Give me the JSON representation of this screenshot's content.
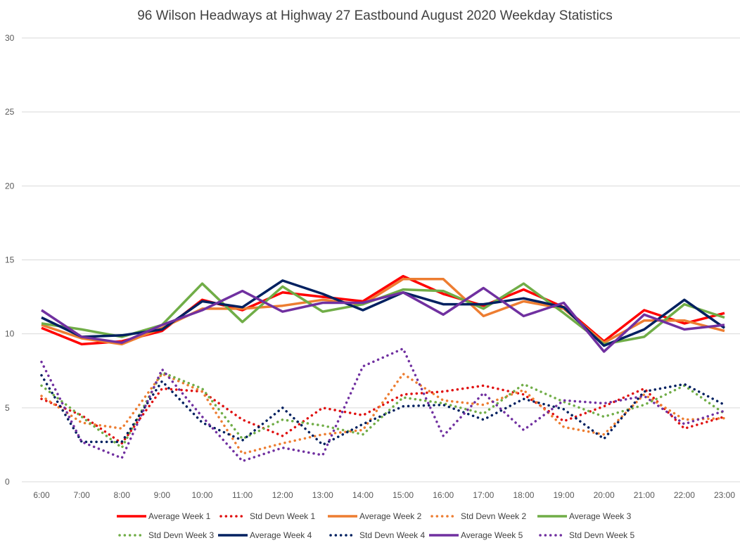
{
  "chart_data": {
    "type": "line",
    "title": "96 Wilson Headways at Highway 27 Eastbound August 2020 Weekday Statistics",
    "xlabel": "",
    "ylabel": "",
    "ylim": [
      0,
      30
    ],
    "yticks": [
      "0",
      "5",
      "10",
      "15",
      "20",
      "25",
      "30"
    ],
    "ytick_values": [
      0,
      5,
      10,
      15,
      20,
      25,
      30
    ],
    "grid": true,
    "legend_position": "bottom",
    "categories": [
      "6:00",
      "7:00",
      "8:00",
      "9:00",
      "10:00",
      "11:00",
      "12:00",
      "13:00",
      "14:00",
      "15:00",
      "16:00",
      "17:00",
      "18:00",
      "19:00",
      "20:00",
      "21:00",
      "22:00",
      "23:00"
    ],
    "series": [
      {
        "name": "Average Week 1",
        "style": "solid",
        "color": "#ff0000",
        "values": [
          10.4,
          9.3,
          9.5,
          10.2,
          12.3,
          11.6,
          12.8,
          12.5,
          12.2,
          13.9,
          12.7,
          11.9,
          13.0,
          11.8,
          9.5,
          11.6,
          10.7,
          11.4
        ]
      },
      {
        "name": "Std Devn Week 1",
        "style": "dotted",
        "color": "#e01010",
        "values": [
          5.6,
          4.5,
          2.6,
          6.3,
          6.1,
          4.2,
          3.1,
          5.0,
          4.5,
          5.9,
          6.1,
          6.5,
          5.9,
          4.1,
          5.1,
          6.3,
          3.6,
          4.4
        ]
      },
      {
        "name": "Average Week 2",
        "style": "solid",
        "color": "#ed7d31",
        "values": [
          10.6,
          9.7,
          9.3,
          10.4,
          11.7,
          11.7,
          11.9,
          12.3,
          12.0,
          13.7,
          13.7,
          11.2,
          12.2,
          11.7,
          9.4,
          10.9,
          10.9,
          10.2
        ]
      },
      {
        "name": "Std Devn Week 2",
        "style": "dotted",
        "color": "#ed7d31",
        "values": [
          5.8,
          4.0,
          3.6,
          7.3,
          6.1,
          1.9,
          2.6,
          3.2,
          3.5,
          7.3,
          5.5,
          5.2,
          6.2,
          3.7,
          3.2,
          5.9,
          4.2,
          4.3
        ]
      },
      {
        "name": "Average Week 3",
        "style": "solid",
        "color": "#70ad47",
        "values": [
          10.7,
          10.3,
          9.8,
          10.6,
          13.4,
          10.8,
          13.2,
          11.5,
          12.0,
          13.0,
          12.9,
          11.7,
          13.4,
          11.4,
          9.3,
          9.8,
          12.0,
          11.1
        ]
      },
      {
        "name": "Std Devn Week 3",
        "style": "dotted",
        "color": "#70ad47",
        "values": [
          6.5,
          4.4,
          2.3,
          7.4,
          6.3,
          2.9,
          4.2,
          3.8,
          3.2,
          5.7,
          5.3,
          4.6,
          6.6,
          5.4,
          4.4,
          5.2,
          6.5,
          4.6
        ]
      },
      {
        "name": "Average Week 4",
        "style": "solid",
        "color": "#002060",
        "values": [
          11.1,
          9.8,
          9.9,
          10.3,
          12.2,
          11.8,
          13.6,
          12.7,
          11.6,
          12.8,
          12.0,
          12.0,
          12.4,
          11.8,
          9.2,
          10.3,
          12.3,
          10.4
        ]
      },
      {
        "name": "Std Devn Week 4",
        "style": "dotted",
        "color": "#002060",
        "values": [
          7.2,
          2.7,
          2.7,
          6.8,
          4.0,
          2.8,
          5.0,
          2.5,
          3.9,
          5.1,
          5.2,
          4.2,
          5.6,
          4.9,
          2.9,
          6.1,
          6.6,
          5.2
        ]
      },
      {
        "name": "Average Week 5",
        "style": "solid",
        "color": "#7030a0",
        "values": [
          11.6,
          9.8,
          9.4,
          10.6,
          11.6,
          12.9,
          11.5,
          12.1,
          12.1,
          12.8,
          11.3,
          13.1,
          11.2,
          12.1,
          8.8,
          11.3,
          10.3,
          10.6
        ]
      },
      {
        "name": "Std Devn Week 5",
        "style": "dotted",
        "color": "#7030a0",
        "values": [
          8.1,
          2.7,
          1.6,
          7.6,
          4.4,
          1.4,
          2.3,
          1.8,
          7.8,
          9.0,
          3.1,
          6.0,
          3.5,
          5.5,
          5.3,
          5.8,
          3.9,
          4.8
        ]
      }
    ]
  }
}
